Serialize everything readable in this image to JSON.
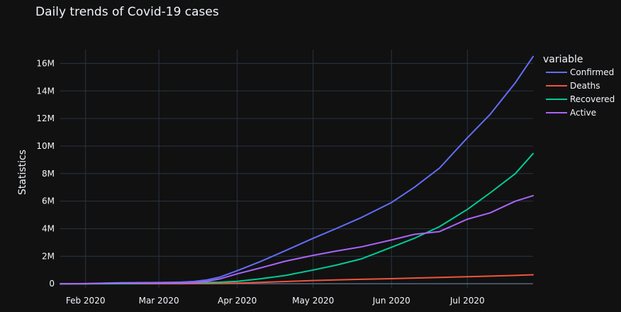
{
  "chart_data": {
    "type": "line",
    "title": "Daily trends of Covid-19 cases",
    "xlabel": "",
    "ylabel": "Statistics",
    "legend_title": "variable",
    "legend_position": "right",
    "grid": true,
    "xlim": [
      "2020-01-22",
      "2020-07-27"
    ],
    "ylim": [
      -300000,
      17000000
    ],
    "x_ticks": [
      {
        "date": "2020-02-01",
        "label": "Feb 2020"
      },
      {
        "date": "2020-03-01",
        "label": "Mar 2020"
      },
      {
        "date": "2020-04-01",
        "label": "Apr 2020"
      },
      {
        "date": "2020-05-01",
        "label": "May 2020"
      },
      {
        "date": "2020-06-01",
        "label": "Jun 2020"
      },
      {
        "date": "2020-07-01",
        "label": "Jul 2020"
      }
    ],
    "y_ticks": [
      {
        "value": 0,
        "label": "0"
      },
      {
        "value": 2000000,
        "label": "2M"
      },
      {
        "value": 4000000,
        "label": "4M"
      },
      {
        "value": 6000000,
        "label": "6M"
      },
      {
        "value": 8000000,
        "label": "8M"
      },
      {
        "value": 10000000,
        "label": "10M"
      },
      {
        "value": 12000000,
        "label": "12M"
      },
      {
        "value": 14000000,
        "label": "14M"
      },
      {
        "value": 16000000,
        "label": "16M"
      }
    ],
    "x": [
      "2020-01-22",
      "2020-02-01",
      "2020-02-15",
      "2020-03-01",
      "2020-03-10",
      "2020-03-15",
      "2020-03-20",
      "2020-03-25",
      "2020-04-01",
      "2020-04-10",
      "2020-04-20",
      "2020-05-01",
      "2020-05-10",
      "2020-05-20",
      "2020-06-01",
      "2020-06-10",
      "2020-06-20",
      "2020-07-01",
      "2020-07-10",
      "2020-07-20",
      "2020-07-27"
    ],
    "series": [
      {
        "name": "Confirmed",
        "color": "#636efa",
        "values": [
          0,
          12000,
          70000,
          90000,
          120000,
          170000,
          280000,
          480000,
          950000,
          1600000,
          2400000,
          3300000,
          4000000,
          4800000,
          5900000,
          7000000,
          8400000,
          10600000,
          12300000,
          14600000,
          16500000
        ]
      },
      {
        "name": "Deaths",
        "color": "#ef553b",
        "values": [
          0,
          250,
          1700,
          3000,
          4000,
          6500,
          11500,
          22000,
          50000,
          100000,
          165000,
          235000,
          280000,
          325000,
          370000,
          415000,
          460000,
          510000,
          555000,
          605000,
          650000
        ]
      },
      {
        "name": "Recovered",
        "color": "#00cc96",
        "values": [
          0,
          500,
          10000,
          42000,
          65000,
          75000,
          90000,
          110000,
          180000,
          360000,
          600000,
          1000000,
          1350000,
          1800000,
          2650000,
          3300000,
          4150000,
          5400000,
          6600000,
          8000000,
          9450000
        ]
      },
      {
        "name": "Active",
        "color": "#ab63fa",
        "values": [
          0,
          11000,
          58000,
          45000,
          51000,
          88500,
          178500,
          348000,
          720000,
          1140000,
          1635000,
          2065000,
          2370000,
          2675000,
          3180000,
          3585000,
          3790000,
          4690000,
          5145000,
          5995000,
          6400000
        ]
      }
    ]
  }
}
